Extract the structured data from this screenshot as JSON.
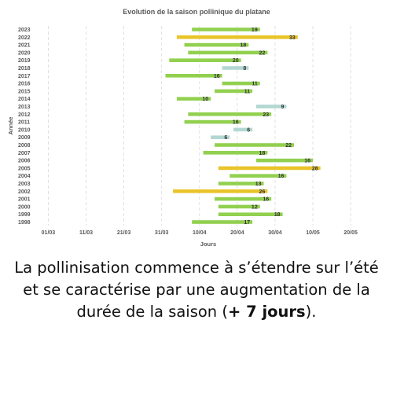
{
  "caption": {
    "before": "La pollinisation commence à s’étendre sur l’été et se caractérise par une augmentation de la durée de la saison (",
    "bold": "+ 7 jours",
    "after": ")."
  },
  "chart_data": {
    "type": "bar",
    "orientation": "horizontal-range",
    "title": "Evolution de la saison pollinique du platane",
    "xlabel": "Jours",
    "ylabel": "Année",
    "x_ticks": [
      "01/03",
      "11/03",
      "21/03",
      "31/03",
      "10/04",
      "20/04",
      "30/04",
      "10/05",
      "20/05"
    ],
    "x_tick_days": [
      0,
      10,
      20,
      30,
      40,
      50,
      60,
      70,
      80
    ],
    "xlim": [
      -3,
      86
    ],
    "grid": "vertical dashed",
    "legend": "none",
    "colors": {
      "green": "#92d050",
      "yellow": "#e9c42a",
      "pale": "#b3d7d2"
    },
    "series": [
      {
        "year": "2023",
        "start": "08/04",
        "end": "26/04",
        "days": 19,
        "color": "green"
      },
      {
        "year": "2022",
        "start": "04/04",
        "end": "06/05",
        "days": 33,
        "color": "yellow"
      },
      {
        "year": "2021",
        "start": "06/04",
        "end": "23/04",
        "days": 18,
        "color": "green"
      },
      {
        "year": "2020",
        "start": "07/04",
        "end": "28/04",
        "days": 22,
        "color": "green"
      },
      {
        "year": "2019",
        "start": "02/04",
        "end": "21/04",
        "days": 20,
        "color": "green"
      },
      {
        "year": "2018",
        "start": "16/04",
        "end": "23/04",
        "days": 8,
        "color": "pale"
      },
      {
        "year": "2017",
        "start": "01/04",
        "end": "16/04",
        "days": 16,
        "color": "green"
      },
      {
        "year": "2016",
        "start": "16/04",
        "end": "26/04",
        "days": 11,
        "color": "green"
      },
      {
        "year": "2015",
        "start": "14/04",
        "end": "24/04",
        "days": 11,
        "color": "green"
      },
      {
        "year": "2014",
        "start": "04/04",
        "end": "13/04",
        "days": 10,
        "color": "green"
      },
      {
        "year": "2013",
        "start": "25/04",
        "end": "03/05",
        "days": 9,
        "color": "pale"
      },
      {
        "year": "2012",
        "start": "07/04",
        "end": "29/04",
        "days": 23,
        "color": "green"
      },
      {
        "year": "2011",
        "start": "06/04",
        "end": "21/04",
        "days": 16,
        "color": "green"
      },
      {
        "year": "2010",
        "start": "19/04",
        "end": "24/04",
        "days": 6,
        "color": "pale"
      },
      {
        "year": "2009",
        "start": "13/04",
        "end": "18/04",
        "days": 6,
        "color": "pale"
      },
      {
        "year": "2008",
        "start": "14/04",
        "end": "05/05",
        "days": 22,
        "color": "green"
      },
      {
        "year": "2007",
        "start": "11/04",
        "end": "28/04",
        "days": 18,
        "color": "green"
      },
      {
        "year": "2006",
        "start": "25/04",
        "end": "10/05",
        "days": 16,
        "color": "green"
      },
      {
        "year": "2005",
        "start": "15/04",
        "end": "12/05",
        "days": 28,
        "color": "yellow"
      },
      {
        "year": "2004",
        "start": "18/04",
        "end": "03/05",
        "days": 16,
        "color": "green"
      },
      {
        "year": "2003",
        "start": "15/04",
        "end": "27/04",
        "days": 13,
        "color": "green"
      },
      {
        "year": "2002",
        "start": "03/04",
        "end": "28/04",
        "days": 26,
        "color": "yellow"
      },
      {
        "year": "2001",
        "start": "14/04",
        "end": "29/04",
        "days": 16,
        "color": "green"
      },
      {
        "year": "2000",
        "start": "15/04",
        "end": "26/04",
        "days": 12,
        "color": "green"
      },
      {
        "year": "1999",
        "start": "15/04",
        "end": "02/05",
        "days": 18,
        "color": "green"
      },
      {
        "year": "1998",
        "start": "08/04",
        "end": "24/04",
        "days": 17,
        "color": "green"
      }
    ]
  }
}
